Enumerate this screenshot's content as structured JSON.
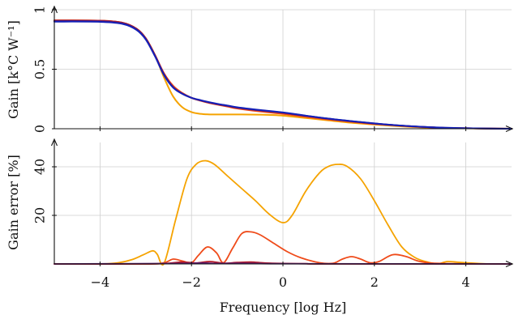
{
  "chart_data": [
    {
      "type": "line",
      "ylabel": "Gain [k°C W⁻¹]",
      "xlim": [
        -5,
        5
      ],
      "ylim": [
        0,
        1
      ],
      "yticks": [
        0,
        0.5,
        1
      ],
      "grid": true,
      "x": [
        -5,
        -4,
        -3.5,
        -3.2,
        -3,
        -2.8,
        -2.6,
        -2.4,
        -2.2,
        -2,
        -1.8,
        -1.6,
        -1.4,
        -1.2,
        -1,
        -0.5,
        0,
        0.5,
        1,
        1.5,
        2,
        2.5,
        3,
        3.5,
        4,
        4.5,
        5
      ],
      "series": [
        {
          "color": "#f5a300",
          "values": [
            0.91,
            0.908,
            0.89,
            0.84,
            0.76,
            0.62,
            0.43,
            0.27,
            0.18,
            0.14,
            0.125,
            0.12,
            0.12,
            0.12,
            0.12,
            0.118,
            0.11,
            0.09,
            0.07,
            0.05,
            0.035,
            0.022,
            0.012,
            0.006,
            0.003,
            0.001,
            0.0
          ]
        },
        {
          "color": "#ef4b1a",
          "values": [
            0.91,
            0.908,
            0.89,
            0.84,
            0.76,
            0.62,
            0.465,
            0.36,
            0.3,
            0.26,
            0.235,
            0.215,
            0.2,
            0.185,
            0.17,
            0.145,
            0.125,
            0.1,
            0.077,
            0.058,
            0.04,
            0.026,
            0.015,
            0.008,
            0.004,
            0.0015,
            0.0
          ]
        },
        {
          "color": "#b51a26",
          "values": [
            0.91,
            0.908,
            0.89,
            0.84,
            0.76,
            0.62,
            0.46,
            0.35,
            0.295,
            0.26,
            0.237,
            0.218,
            0.203,
            0.19,
            0.176,
            0.153,
            0.133,
            0.107,
            0.083,
            0.062,
            0.043,
            0.028,
            0.016,
            0.008,
            0.004,
            0.0015,
            0.0
          ]
        },
        {
          "color": "#5c1d6f",
          "values": [
            0.905,
            0.903,
            0.885,
            0.835,
            0.755,
            0.615,
            0.455,
            0.348,
            0.294,
            0.26,
            0.238,
            0.22,
            0.205,
            0.192,
            0.178,
            0.155,
            0.135,
            0.109,
            0.084,
            0.063,
            0.044,
            0.028,
            0.016,
            0.008,
            0.004,
            0.0015,
            0.0
          ]
        },
        {
          "color": "#1420b8",
          "values": [
            0.9,
            0.898,
            0.88,
            0.83,
            0.75,
            0.61,
            0.45,
            0.345,
            0.293,
            0.26,
            0.24,
            0.222,
            0.207,
            0.194,
            0.18,
            0.157,
            0.137,
            0.11,
            0.085,
            0.064,
            0.045,
            0.029,
            0.017,
            0.009,
            0.004,
            0.0015,
            0.0
          ]
        }
      ]
    },
    {
      "type": "line",
      "ylabel": "Gain error [%]",
      "xlabel": "Frequency [log Hz]",
      "xlim": [
        -5,
        5
      ],
      "ylim": [
        0,
        50
      ],
      "xticks": [
        -4,
        -2,
        0,
        2,
        4
      ],
      "xticklabels": [
        "−4",
        "−2",
        "0",
        "2",
        "4"
      ],
      "yticks": [
        20,
        40
      ],
      "grid": true,
      "series": [
        {
          "color": "#f5a300",
          "x": [
            -5,
            -4,
            -3.6,
            -3.3,
            -3.05,
            -2.85,
            -2.75,
            -2.6,
            -2.35,
            -2.1,
            -1.9,
            -1.7,
            -1.5,
            -1.2,
            -0.9,
            -0.6,
            -0.3,
            0,
            0.2,
            0.5,
            0.8,
            1.0,
            1.2,
            1.4,
            1.7,
            2.0,
            2.3,
            2.6,
            2.9,
            3.2,
            3.4,
            3.6,
            3.9,
            4.5,
            5
          ],
          "values": [
            0,
            0,
            0.5,
            1.8,
            3.8,
            5.4,
            4.0,
            0.2,
            18,
            35,
            41,
            42.5,
            41,
            36,
            31,
            26,
            20.5,
            17,
            20,
            30,
            37.5,
            40.2,
            41,
            40.2,
            35,
            26,
            16,
            7,
            2.5,
            0.6,
            0.1,
            1.0,
            0.6,
            0,
            0
          ]
        },
        {
          "color": "#ef4b1a",
          "x": [
            -5,
            -3,
            -2.6,
            -2.4,
            -2.2,
            -2.0,
            -1.85,
            -1.65,
            -1.45,
            -1.3,
            -1.1,
            -0.9,
            -0.7,
            -0.5,
            -0.2,
            0.1,
            0.4,
            0.8,
            1.1,
            1.3,
            1.5,
            1.7,
            1.9,
            2.1,
            2.4,
            2.7,
            3.0,
            3.5,
            5
          ],
          "values": [
            0,
            0,
            0.5,
            2.0,
            1.2,
            0.5,
            3.5,
            7.0,
            4.5,
            0.5,
            6.5,
            12.5,
            13.2,
            12,
            8.5,
            5,
            2.5,
            0.5,
            0.3,
            2.0,
            3.0,
            2.0,
            0.5,
            1.0,
            3.8,
            3.0,
            1.0,
            0.2,
            0
          ]
        },
        {
          "color": "#b51a26",
          "x": [
            -5,
            -3,
            -2.5,
            -2.2,
            -1.9,
            -1.6,
            -1.3,
            -1.0,
            -0.7,
            -0.4,
            0,
            0.5,
            1.0,
            5
          ],
          "values": [
            0,
            0,
            0.3,
            0.8,
            0.4,
            1.0,
            0.3,
            0.6,
            0.8,
            0.4,
            0.2,
            0.1,
            0,
            0
          ]
        },
        {
          "color": "#5c1d6f",
          "x": [
            -5,
            -2.3,
            -1.8,
            -1.4,
            -1.0,
            -0.5,
            0,
            5
          ],
          "values": [
            0,
            0.2,
            0.4,
            0.2,
            0.3,
            0.2,
            0.1,
            0
          ]
        }
      ]
    }
  ]
}
